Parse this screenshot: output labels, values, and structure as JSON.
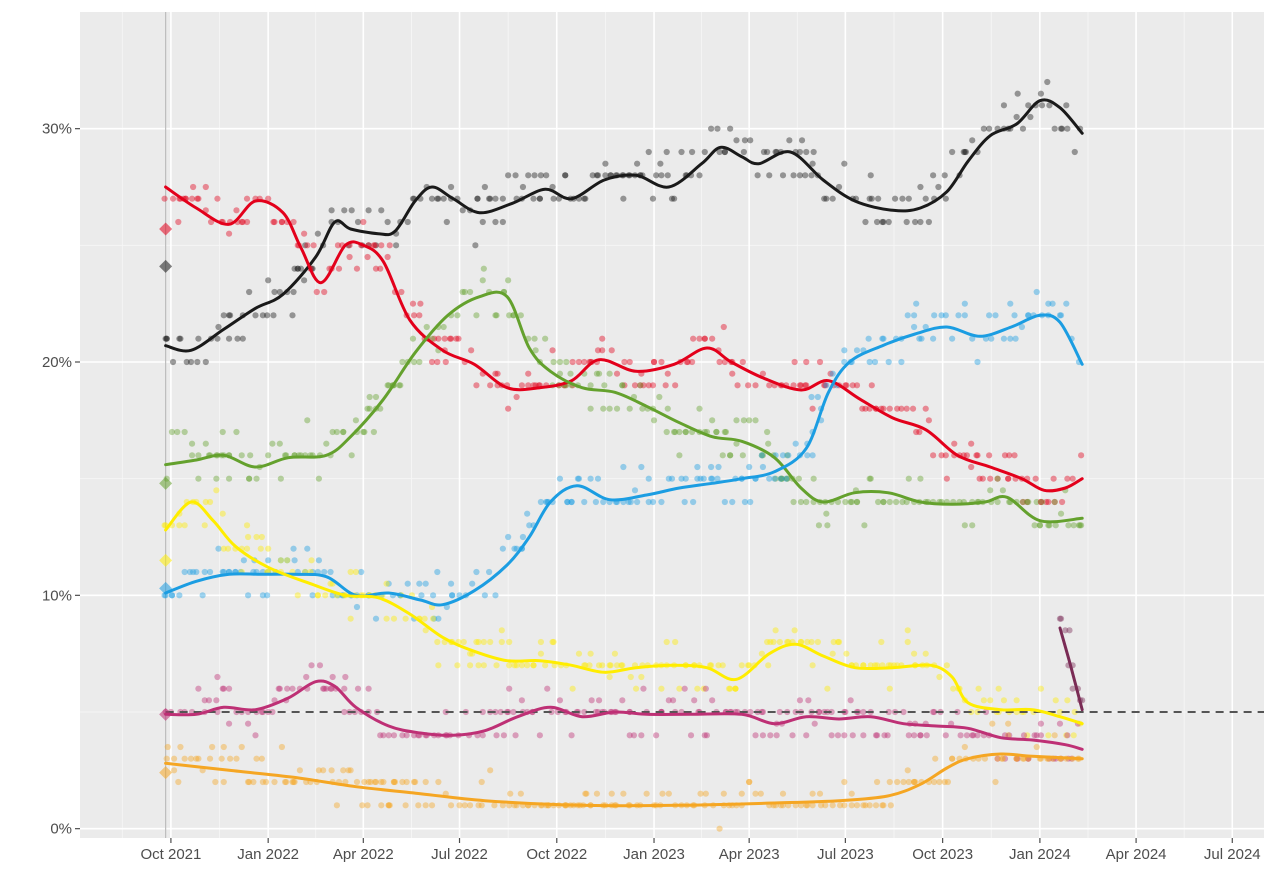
{
  "chart_data": {
    "type": "scatter",
    "title": "",
    "xlabel": "",
    "ylabel": "",
    "xlim": [
      "2021-07-07",
      "2024-07-31"
    ],
    "ylim": [
      -0.4,
      35
    ],
    "grid": true,
    "legend": "none",
    "x_ticks": [
      {
        "date": "2021-10-01",
        "label": "Oct 2021"
      },
      {
        "date": "2022-01-01",
        "label": "Jan 2022"
      },
      {
        "date": "2022-04-01",
        "label": "Apr 2022"
      },
      {
        "date": "2022-07-01",
        "label": "Jul 2022"
      },
      {
        "date": "2022-10-01",
        "label": "Oct 2022"
      },
      {
        "date": "2023-01-01",
        "label": "Jan 2023"
      },
      {
        "date": "2023-04-01",
        "label": "Apr 2023"
      },
      {
        "date": "2023-07-01",
        "label": "Jul 2023"
      },
      {
        "date": "2023-10-01",
        "label": "Oct 2023"
      },
      {
        "date": "2024-01-01",
        "label": "Jan 2024"
      },
      {
        "date": "2024-04-01",
        "label": "Apr 2024"
      },
      {
        "date": "2024-07-01",
        "label": "Jul 2024"
      }
    ],
    "y_ticks": [
      {
        "value": 0,
        "label": "0%"
      },
      {
        "value": 10,
        "label": "10%"
      },
      {
        "value": 20,
        "label": "20%"
      },
      {
        "value": 30,
        "label": "30%"
      }
    ],
    "reference_lines": [
      {
        "kind": "threshold",
        "value": 5,
        "from": "2021-09-26",
        "to": "2024-07-31",
        "style": "dashed",
        "color": "#555555"
      },
      {
        "kind": "election",
        "date": "2021-09-26",
        "color": "#bdbdbd"
      }
    ],
    "series": [
      {
        "color": "#1a1a1a",
        "election_result": 24.1,
        "trend": [
          [
            "2021-09-26",
            20.7
          ],
          [
            "2021-10-20",
            20.5
          ],
          [
            "2021-11-20",
            21.4
          ],
          [
            "2021-12-20",
            22.3
          ],
          [
            "2022-01-15",
            22.9
          ],
          [
            "2022-02-15",
            24.5
          ],
          [
            "2022-03-05",
            26.0
          ],
          [
            "2022-03-20",
            25.7
          ],
          [
            "2022-04-15",
            25.5
          ],
          [
            "2022-05-01",
            25.6
          ],
          [
            "2022-05-20",
            26.9
          ],
          [
            "2022-06-05",
            27.5
          ],
          [
            "2022-06-25",
            27.0
          ],
          [
            "2022-07-20",
            26.4
          ],
          [
            "2022-08-20",
            26.8
          ],
          [
            "2022-09-20",
            27.4
          ],
          [
            "2022-10-15",
            27.0
          ],
          [
            "2022-11-15",
            27.8
          ],
          [
            "2022-12-15",
            28.0
          ],
          [
            "2023-01-15",
            27.5
          ],
          [
            "2023-02-15",
            28.5
          ],
          [
            "2023-03-05",
            29.2
          ],
          [
            "2023-03-25",
            28.8
          ],
          [
            "2023-04-10",
            28.5
          ],
          [
            "2023-05-10",
            29.0
          ],
          [
            "2023-06-10",
            27.8
          ],
          [
            "2023-07-10",
            26.9
          ],
          [
            "2023-08-15",
            26.5
          ],
          [
            "2023-09-10",
            26.6
          ],
          [
            "2023-10-05",
            27.3
          ],
          [
            "2023-10-25",
            28.6
          ],
          [
            "2023-11-15",
            29.7
          ],
          [
            "2023-12-10",
            30.2
          ],
          [
            "2024-01-01",
            31.2
          ],
          [
            "2024-01-20",
            30.9
          ],
          [
            "2024-02-10",
            29.8
          ]
        ]
      },
      {
        "color": "#e3001b",
        "election_result": 25.7,
        "trend": [
          [
            "2021-09-26",
            27.5
          ],
          [
            "2021-10-25",
            26.6
          ],
          [
            "2021-11-25",
            25.9
          ],
          [
            "2021-12-20",
            26.9
          ],
          [
            "2022-01-15",
            26.4
          ],
          [
            "2022-02-01",
            24.9
          ],
          [
            "2022-02-20",
            23.4
          ],
          [
            "2022-03-15",
            25.0
          ],
          [
            "2022-04-01",
            25.0
          ],
          [
            "2022-04-20",
            24.3
          ],
          [
            "2022-05-15",
            21.8
          ],
          [
            "2022-06-15",
            20.5
          ],
          [
            "2022-07-15",
            19.9
          ],
          [
            "2022-08-15",
            18.9
          ],
          [
            "2022-09-15",
            18.9
          ],
          [
            "2022-10-15",
            19.2
          ],
          [
            "2022-11-10",
            20.1
          ],
          [
            "2022-12-15",
            19.6
          ],
          [
            "2023-01-20",
            19.9
          ],
          [
            "2023-02-20",
            20.6
          ],
          [
            "2023-03-15",
            20.0
          ],
          [
            "2023-04-15",
            19.3
          ],
          [
            "2023-05-20",
            18.8
          ],
          [
            "2023-06-15",
            19.2
          ],
          [
            "2023-07-15",
            18.4
          ],
          [
            "2023-08-15",
            17.6
          ],
          [
            "2023-09-15",
            17.1
          ],
          [
            "2023-10-15",
            16.0
          ],
          [
            "2023-11-15",
            15.5
          ],
          [
            "2023-12-15",
            15.0
          ],
          [
            "2024-01-05",
            14.5
          ],
          [
            "2024-01-25",
            14.6
          ],
          [
            "2024-02-10",
            15.0
          ]
        ]
      },
      {
        "color": "#64a12d",
        "election_result": 14.8,
        "trend": [
          [
            "2021-09-26",
            15.6
          ],
          [
            "2021-10-25",
            15.8
          ],
          [
            "2021-11-20",
            16.0
          ],
          [
            "2021-12-20",
            15.5
          ],
          [
            "2022-01-20",
            15.9
          ],
          [
            "2022-02-25",
            16.0
          ],
          [
            "2022-03-20",
            16.8
          ],
          [
            "2022-04-20",
            18.4
          ],
          [
            "2022-05-20",
            20.4
          ],
          [
            "2022-06-20",
            22.0
          ],
          [
            "2022-07-20",
            22.8
          ],
          [
            "2022-08-15",
            22.8
          ],
          [
            "2022-09-05",
            20.6
          ],
          [
            "2022-09-25",
            19.6
          ],
          [
            "2022-10-25",
            18.9
          ],
          [
            "2022-11-25",
            18.7
          ],
          [
            "2022-12-25",
            18.1
          ],
          [
            "2023-01-25",
            17.4
          ],
          [
            "2023-02-25",
            16.8
          ],
          [
            "2023-03-25",
            16.6
          ],
          [
            "2023-04-25",
            15.9
          ],
          [
            "2023-05-20",
            14.6
          ],
          [
            "2023-06-10",
            14.0
          ],
          [
            "2023-07-10",
            14.4
          ],
          [
            "2023-08-10",
            14.4
          ],
          [
            "2023-09-10",
            14.0
          ],
          [
            "2023-10-10",
            13.9
          ],
          [
            "2023-11-10",
            14.0
          ],
          [
            "2023-12-01",
            14.2
          ],
          [
            "2024-01-01",
            13.2
          ],
          [
            "2024-02-10",
            13.3
          ]
        ]
      },
      {
        "color": "#1b9de2",
        "election_result": 10.3,
        "trend": [
          [
            "2021-09-26",
            10.1
          ],
          [
            "2021-10-25",
            10.6
          ],
          [
            "2021-11-25",
            10.9
          ],
          [
            "2021-12-25",
            10.9
          ],
          [
            "2022-01-25",
            10.9
          ],
          [
            "2022-02-25",
            10.8
          ],
          [
            "2022-03-25",
            10.0
          ],
          [
            "2022-04-25",
            10.1
          ],
          [
            "2022-05-25",
            9.8
          ],
          [
            "2022-06-15",
            9.6
          ],
          [
            "2022-07-15",
            10.2
          ],
          [
            "2022-08-15",
            11.3
          ],
          [
            "2022-09-05",
            12.5
          ],
          [
            "2022-09-25",
            14.0
          ],
          [
            "2022-10-20",
            14.7
          ],
          [
            "2022-11-20",
            14.1
          ],
          [
            "2022-12-25",
            14.3
          ],
          [
            "2023-01-25",
            14.6
          ],
          [
            "2023-02-25",
            14.8
          ],
          [
            "2023-03-25",
            15.0
          ],
          [
            "2023-04-25",
            15.3
          ],
          [
            "2023-05-25",
            16.3
          ],
          [
            "2023-06-15",
            18.7
          ],
          [
            "2023-07-05",
            20.0
          ],
          [
            "2023-08-05",
            20.7
          ],
          [
            "2023-09-05",
            21.2
          ],
          [
            "2023-10-05",
            21.5
          ],
          [
            "2023-11-05",
            21.1
          ],
          [
            "2023-12-05",
            21.5
          ],
          [
            "2024-01-01",
            22.0
          ],
          [
            "2024-01-20",
            21.7
          ],
          [
            "2024-02-10",
            19.9
          ]
        ]
      },
      {
        "color": "#ffed00",
        "election_result": 11.5,
        "trend": [
          [
            "2021-09-26",
            12.8
          ],
          [
            "2021-10-20",
            14.0
          ],
          [
            "2021-11-10",
            13.2
          ],
          [
            "2021-12-01",
            12.1
          ],
          [
            "2022-01-01",
            11.2
          ],
          [
            "2022-02-10",
            10.5
          ],
          [
            "2022-03-15",
            10.0
          ],
          [
            "2022-04-15",
            9.9
          ],
          [
            "2022-05-15",
            9.2
          ],
          [
            "2022-06-15",
            8.2
          ],
          [
            "2022-07-15",
            7.6
          ],
          [
            "2022-08-15",
            7.2
          ],
          [
            "2022-09-15",
            7.2
          ],
          [
            "2022-10-15",
            7.0
          ],
          [
            "2022-11-15",
            6.7
          ],
          [
            "2022-12-15",
            6.9
          ],
          [
            "2023-01-20",
            7.0
          ],
          [
            "2023-02-20",
            6.9
          ],
          [
            "2023-03-20",
            6.4
          ],
          [
            "2023-04-20",
            7.5
          ],
          [
            "2023-05-15",
            7.9
          ],
          [
            "2023-06-10",
            7.4
          ],
          [
            "2023-07-10",
            6.9
          ],
          [
            "2023-08-15",
            6.9
          ],
          [
            "2023-09-20",
            7.0
          ],
          [
            "2023-10-10",
            6.5
          ],
          [
            "2023-10-25",
            5.4
          ],
          [
            "2023-11-25",
            5.1
          ],
          [
            "2023-12-25",
            5.1
          ],
          [
            "2024-01-20",
            4.8
          ],
          [
            "2024-02-10",
            4.5
          ]
        ]
      },
      {
        "color": "#be3075",
        "election_result": 4.9,
        "trend": [
          [
            "2021-09-26",
            4.9
          ],
          [
            "2021-10-25",
            4.9
          ],
          [
            "2021-11-20",
            5.2
          ],
          [
            "2021-12-20",
            5.1
          ],
          [
            "2022-01-20",
            5.6
          ],
          [
            "2022-02-15",
            6.3
          ],
          [
            "2022-03-05",
            6.1
          ],
          [
            "2022-03-25",
            5.2
          ],
          [
            "2022-04-25",
            4.4
          ],
          [
            "2022-05-25",
            4.1
          ],
          [
            "2022-06-25",
            4.0
          ],
          [
            "2022-07-25",
            4.2
          ],
          [
            "2022-08-25",
            4.8
          ],
          [
            "2022-09-25",
            5.2
          ],
          [
            "2022-10-25",
            4.8
          ],
          [
            "2022-11-25",
            5.0
          ],
          [
            "2022-12-25",
            4.9
          ],
          [
            "2023-02-05",
            4.9
          ],
          [
            "2023-03-25",
            4.9
          ],
          [
            "2023-04-25",
            4.5
          ],
          [
            "2023-05-25",
            4.8
          ],
          [
            "2023-06-25",
            4.7
          ],
          [
            "2023-07-25",
            4.8
          ],
          [
            "2023-08-25",
            4.5
          ],
          [
            "2023-09-25",
            4.4
          ],
          [
            "2023-10-25",
            4.3
          ],
          [
            "2023-11-25",
            3.9
          ],
          [
            "2023-12-25",
            3.8
          ],
          [
            "2024-01-25",
            3.6
          ],
          [
            "2024-02-10",
            3.4
          ]
        ]
      },
      {
        "color": "#7a2b55",
        "trend": [
          [
            "2024-01-20",
            8.6
          ],
          [
            "2024-01-30",
            7.0
          ],
          [
            "2024-02-10",
            5.1
          ]
        ]
      },
      {
        "color": "#f5a623",
        "election_result": 2.4,
        "trend": [
          [
            "2021-09-26",
            2.8
          ],
          [
            "2021-11-25",
            2.5
          ],
          [
            "2022-01-25",
            2.2
          ],
          [
            "2022-03-25",
            1.8
          ],
          [
            "2022-05-25",
            1.5
          ],
          [
            "2022-07-25",
            1.2
          ],
          [
            "2022-10-25",
            1.0
          ],
          [
            "2023-01-25",
            1.0
          ],
          [
            "2023-04-25",
            1.1
          ],
          [
            "2023-06-25",
            1.2
          ],
          [
            "2023-08-10",
            1.4
          ],
          [
            "2023-09-10",
            1.9
          ],
          [
            "2023-10-05",
            2.6
          ],
          [
            "2023-10-25",
            3.0
          ],
          [
            "2023-11-25",
            3.2
          ],
          [
            "2023-12-25",
            3.1
          ],
          [
            "2024-02-10",
            3.0
          ]
        ]
      }
    ]
  }
}
